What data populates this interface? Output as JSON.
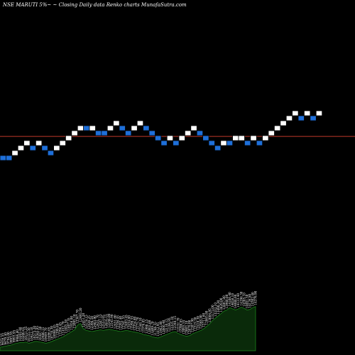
{
  "header": {
    "text": "NSE MARUTI 5%~ ~ Closing Daily data  Renko  charts MunafaSutra.com"
  },
  "colors": {
    "background": "#000000",
    "up_brick": "#ffffff",
    "down_brick": "#1e6fd9",
    "brick_border": "#000000",
    "reference_line": "#c0392b",
    "volume_fill": "#0a2a0a",
    "volume_stroke": "#1f8f1f",
    "label_color": "#ffffff"
  },
  "chart_data": {
    "type": "renko",
    "title": "NSE MARUTI 5%~ ~ Closing Daily data  Renko  charts MunafaSutra.com",
    "brick_size_percent": 5,
    "bricks": [
      {
        "level": 0,
        "dir": "down"
      },
      {
        "level": 0,
        "dir": "down"
      },
      {
        "level": 1,
        "dir": "up"
      },
      {
        "level": 2,
        "dir": "up"
      },
      {
        "level": 3,
        "dir": "up"
      },
      {
        "level": 2,
        "dir": "down"
      },
      {
        "level": 3,
        "dir": "up"
      },
      {
        "level": 2,
        "dir": "down"
      },
      {
        "level": 1,
        "dir": "down"
      },
      {
        "level": 2,
        "dir": "up"
      },
      {
        "level": 3,
        "dir": "up"
      },
      {
        "level": 4,
        "dir": "up"
      },
      {
        "level": 5,
        "dir": "up"
      },
      {
        "level": 6,
        "dir": "up"
      },
      {
        "level": 6,
        "dir": "down"
      },
      {
        "level": 6,
        "dir": "up"
      },
      {
        "level": 5,
        "dir": "down"
      },
      {
        "level": 5,
        "dir": "down"
      },
      {
        "level": 6,
        "dir": "up"
      },
      {
        "level": 7,
        "dir": "up"
      },
      {
        "level": 6,
        "dir": "down"
      },
      {
        "level": 5,
        "dir": "down"
      },
      {
        "level": 6,
        "dir": "up"
      },
      {
        "level": 7,
        "dir": "up"
      },
      {
        "level": 6,
        "dir": "down"
      },
      {
        "level": 5,
        "dir": "down"
      },
      {
        "level": 4,
        "dir": "down"
      },
      {
        "level": 3,
        "dir": "down"
      },
      {
        "level": 4,
        "dir": "up"
      },
      {
        "level": 3,
        "dir": "down"
      },
      {
        "level": 4,
        "dir": "up"
      },
      {
        "level": 5,
        "dir": "up"
      },
      {
        "level": 6,
        "dir": "up"
      },
      {
        "level": 5,
        "dir": "down"
      },
      {
        "level": 4,
        "dir": "down"
      },
      {
        "level": 3,
        "dir": "down"
      },
      {
        "level": 2,
        "dir": "down"
      },
      {
        "level": 3,
        "dir": "up"
      },
      {
        "level": 3,
        "dir": "down"
      },
      {
        "level": 4,
        "dir": "up"
      },
      {
        "level": 4,
        "dir": "up"
      },
      {
        "level": 3,
        "dir": "down"
      },
      {
        "level": 4,
        "dir": "up"
      },
      {
        "level": 3,
        "dir": "down"
      },
      {
        "level": 4,
        "dir": "up"
      },
      {
        "level": 5,
        "dir": "up"
      },
      {
        "level": 6,
        "dir": "up"
      },
      {
        "level": 7,
        "dir": "up"
      },
      {
        "level": 8,
        "dir": "up"
      },
      {
        "level": 9,
        "dir": "up"
      },
      {
        "level": 8,
        "dir": "down"
      },
      {
        "level": 9,
        "dir": "up"
      },
      {
        "level": 8,
        "dir": "down"
      },
      {
        "level": 9,
        "dir": "up"
      }
    ],
    "reference_level": 4.85,
    "volume": [
      {
        "v": 6,
        "label": "9969.35"
      },
      {
        "v": 7,
        "label": "9656.55"
      },
      {
        "v": 8,
        "label": "9679.40"
      },
      {
        "v": 9,
        "label": "9794.00"
      },
      {
        "v": 10,
        "label": "9993.95"
      },
      {
        "v": 12,
        "label": "9993.95"
      },
      {
        "v": 13,
        "label": "9986.80"
      },
      {
        "v": 14,
        "label": "10203.40"
      },
      {
        "v": 14,
        "label": "10200.65"
      },
      {
        "v": 15,
        "label": "10151.25"
      },
      {
        "v": 13,
        "label": "10155.50"
      },
      {
        "v": 14,
        "label": "10412.10"
      },
      {
        "v": 16,
        "label": "10573.20"
      },
      {
        "v": 16,
        "label": "10583.95"
      },
      {
        "v": 15,
        "label": "10387.50"
      },
      {
        "v": 14,
        "label": "10486.15"
      },
      {
        "v": 13,
        "label": "10409.70"
      },
      {
        "v": 14,
        "label": "10496.05"
      },
      {
        "v": 16,
        "label": "10734.30"
      },
      {
        "v": 18,
        "label": "10998.45"
      },
      {
        "v": 20,
        "label": "11299.60"
      },
      {
        "v": 22,
        "label": "11296.45"
      },
      {
        "v": 24,
        "label": "11452.70"
      },
      {
        "v": 27,
        "label": "11645.50"
      },
      {
        "v": 30,
        "label": "11807.35"
      },
      {
        "v": 33,
        "label": "11926.00"
      },
      {
        "v": 36,
        "label": "12095.10"
      },
      {
        "v": 44,
        "label": "12367.70"
      },
      {
        "v": 47,
        "label": "12493.20"
      },
      {
        "v": 38,
        "label": "12451.20"
      },
      {
        "v": 35,
        "label": "12378.15"
      },
      {
        "v": 34,
        "label": "12420.25"
      },
      {
        "v": 33,
        "label": "12396.50"
      },
      {
        "v": 34,
        "label": "12403.90"
      },
      {
        "v": 35,
        "label": "12431.70"
      },
      {
        "v": 36,
        "label": "12507.15"
      },
      {
        "v": 35,
        "label": "12553.05"
      },
      {
        "v": 36,
        "label": "12616.15"
      },
      {
        "v": 37,
        "label": "12546.00"
      },
      {
        "v": 36,
        "label": "12545.90"
      },
      {
        "v": 35,
        "label": "12451.60"
      },
      {
        "v": 34,
        "label": "12336.45"
      },
      {
        "v": 33,
        "label": "12292.40"
      },
      {
        "v": 34,
        "label": "12341.55"
      },
      {
        "v": 35,
        "label": "12493.45"
      },
      {
        "v": 34,
        "label": "12434.00"
      },
      {
        "v": 33,
        "label": "12290.55"
      },
      {
        "v": 32,
        "label": "12254.60"
      },
      {
        "v": 31,
        "label": "12175.70"
      },
      {
        "v": 30,
        "label": "12168.10"
      },
      {
        "v": 28,
        "label": "11976.85"
      },
      {
        "v": 27,
        "label": "11998.15"
      },
      {
        "v": 26,
        "label": "12002.60"
      },
      {
        "v": 24,
        "label": "11809.70"
      },
      {
        "v": 23,
        "label": "11786.55"
      },
      {
        "v": 22,
        "label": "11812.95"
      },
      {
        "v": 24,
        "label": "11962.80"
      },
      {
        "v": 26,
        "label": "12060.40"
      },
      {
        "v": 28,
        "label": "12110.15"
      },
      {
        "v": 30,
        "label": "12194.95"
      },
      {
        "v": 32,
        "label": "12325.10"
      },
      {
        "v": 33,
        "label": "12340.15"
      },
      {
        "v": 30,
        "label": "12232.70"
      },
      {
        "v": 28,
        "label": "12206.65"
      },
      {
        "v": 26,
        "label": "12093.55"
      },
      {
        "v": 25,
        "label": "12003.10"
      },
      {
        "v": 26,
        "label": "12078.00"
      },
      {
        "v": 29,
        "label": "12207.90"
      },
      {
        "v": 31,
        "label": "12319.30"
      },
      {
        "v": 33,
        "label": "12410.30"
      },
      {
        "v": 35,
        "label": "12568.80"
      },
      {
        "v": 38,
        "label": "12711.60"
      },
      {
        "v": 42,
        "label": "12865.80"
      },
      {
        "v": 46,
        "label": "13004.95"
      },
      {
        "v": 52,
        "label": "13173.00"
      },
      {
        "v": 56,
        "label": "13332.10"
      },
      {
        "v": 60,
        "label": "13490.30"
      },
      {
        "v": 64,
        "label": "13629.00"
      },
      {
        "v": 68,
        "label": "13807.80"
      },
      {
        "v": 70,
        "label": "13960.00"
      },
      {
        "v": 74,
        "label": "14106.40"
      },
      {
        "v": 72,
        "label": "14058.10"
      },
      {
        "v": 70,
        "label": "14000.00"
      },
      {
        "v": 72,
        "label": "14123.40"
      },
      {
        "v": 75,
        "label": "14296.30"
      },
      {
        "v": 73,
        "label": "14205.10"
      },
      {
        "v": 70,
        "label": "14081.50"
      },
      {
        "v": 71,
        "label": "14126.80"
      },
      {
        "v": 74,
        "label": "14302.40"
      },
      {
        "v": 76,
        "label": "14376.90"
      }
    ]
  }
}
